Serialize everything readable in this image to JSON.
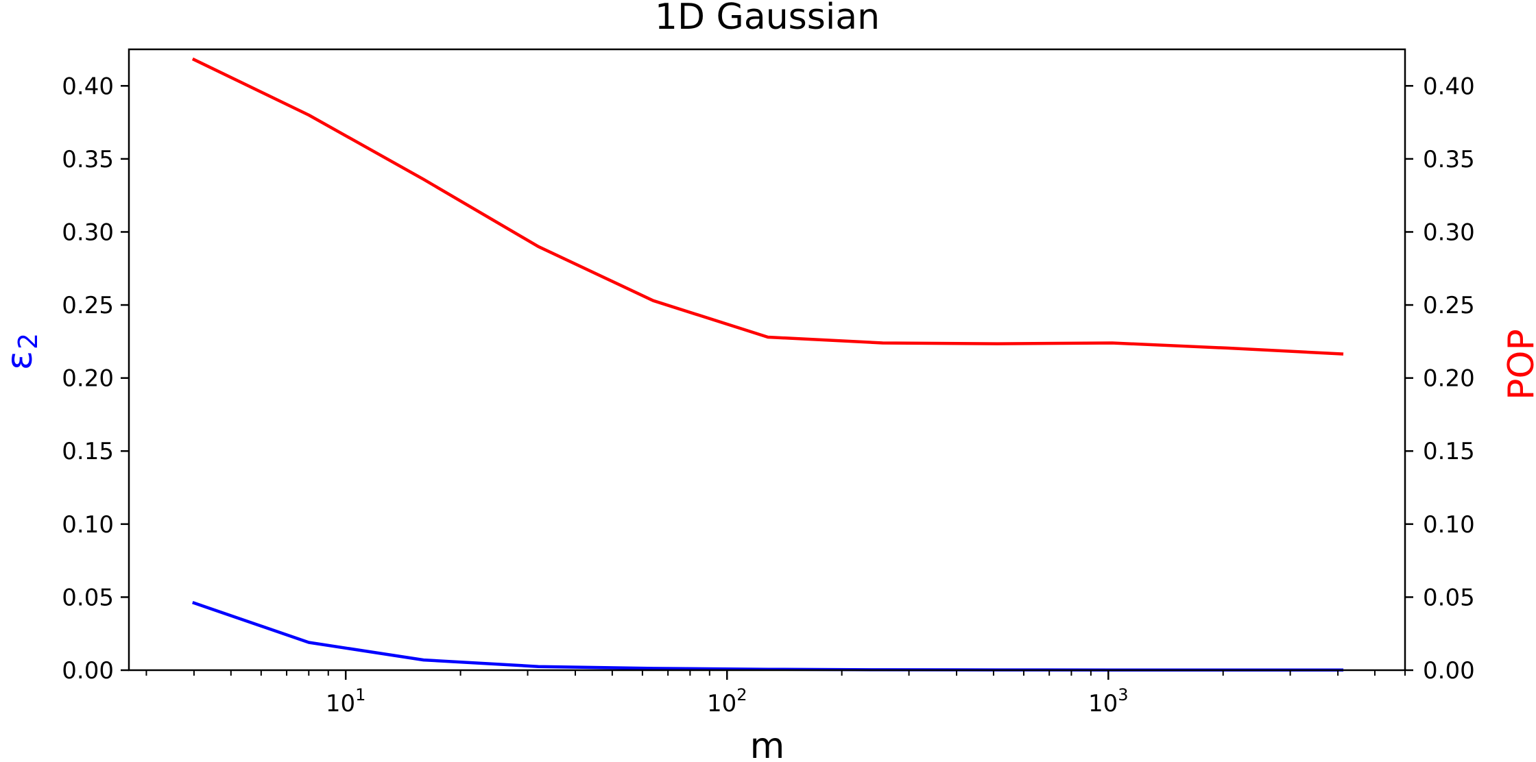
{
  "chart_data": {
    "type": "line",
    "title": "1D Gaussian",
    "xlabel": "m",
    "xscale": "log",
    "xlim": [
      2.7,
      6000
    ],
    "x_major_ticks": [
      10,
      100,
      1000
    ],
    "x_major_tick_labels": [
      {
        "base": "10",
        "exp": "1"
      },
      {
        "base": "10",
        "exp": "2"
      },
      {
        "base": "10",
        "exp": "3"
      }
    ],
    "ylabel_left": {
      "symbol": "ε",
      "subscript": "2",
      "color": "#0000ff"
    },
    "ylabel_right": {
      "text": "POP",
      "color": "#ff0000"
    },
    "ylim": [
      0,
      0.425
    ],
    "y_ticks": [
      0.0,
      0.05,
      0.1,
      0.15,
      0.2,
      0.25,
      0.3,
      0.35,
      0.4
    ],
    "y_tick_labels": [
      "0.00",
      "0.05",
      "0.10",
      "0.15",
      "0.20",
      "0.25",
      "0.30",
      "0.35",
      "0.40"
    ],
    "grid": false,
    "x": [
      4,
      8,
      16,
      32,
      64,
      128,
      256,
      512,
      1024,
      2048,
      4096
    ],
    "series": [
      {
        "axis": "left",
        "color": "#0000ff",
        "values": [
          0.046,
          0.019,
          0.007,
          0.0025,
          0.0012,
          0.0006,
          0.0003,
          0.0002,
          0.0001,
          0.0001,
          0.0001
        ]
      },
      {
        "axis": "right",
        "color": "#ff0000",
        "values": [
          0.418,
          0.38,
          0.336,
          0.29,
          0.253,
          0.228,
          0.224,
          0.2235,
          0.224,
          0.2205,
          0.2165
        ]
      }
    ]
  }
}
